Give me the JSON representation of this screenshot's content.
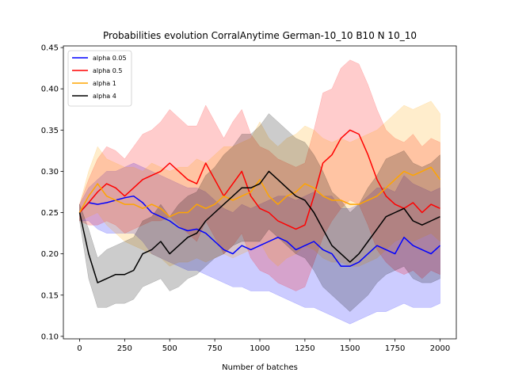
{
  "chart_data": {
    "type": "line",
    "title": "Probabilities evolution CorralAnytime German-10_10 B10 N 10_10",
    "xlabel": "Number of batches",
    "ylabel": "",
    "xlim": [
      -90,
      2090
    ],
    "ylim": [
      0.097,
      0.452
    ],
    "x_ticks": [
      0,
      250,
      500,
      750,
      1000,
      1250,
      1500,
      1750,
      2000
    ],
    "y_ticks": [
      0.1,
      0.15,
      0.2,
      0.25,
      0.3,
      0.35,
      0.4,
      0.45
    ],
    "grid": false,
    "legend_position": "top-left",
    "x": [
      0,
      50,
      100,
      150,
      200,
      250,
      300,
      350,
      400,
      450,
      500,
      550,
      600,
      650,
      700,
      750,
      800,
      850,
      900,
      950,
      1000,
      1050,
      1100,
      1150,
      1200,
      1250,
      1300,
      1350,
      1400,
      1450,
      1500,
      1550,
      1600,
      1650,
      1700,
      1750,
      1800,
      1850,
      1900,
      1950,
      2000
    ],
    "series": [
      {
        "name": "alpha 0.05",
        "color": "#0000ff",
        "values": [
          0.25,
          0.262,
          0.26,
          0.262,
          0.265,
          0.268,
          0.27,
          0.262,
          0.25,
          0.245,
          0.24,
          0.232,
          0.228,
          0.23,
          0.225,
          0.215,
          0.205,
          0.2,
          0.21,
          0.205,
          0.21,
          0.215,
          0.22,
          0.215,
          0.205,
          0.21,
          0.215,
          0.205,
          0.2,
          0.185,
          0.185,
          0.19,
          0.2,
          0.21,
          0.205,
          0.2,
          0.22,
          0.21,
          0.205,
          0.2,
          0.21
        ],
        "lower": [
          0.24,
          0.24,
          0.23,
          0.225,
          0.225,
          0.225,
          0.225,
          0.215,
          0.2,
          0.195,
          0.19,
          0.185,
          0.18,
          0.18,
          0.175,
          0.17,
          0.165,
          0.16,
          0.16,
          0.155,
          0.155,
          0.155,
          0.15,
          0.145,
          0.14,
          0.135,
          0.135,
          0.13,
          0.125,
          0.12,
          0.115,
          0.12,
          0.125,
          0.13,
          0.13,
          0.135,
          0.14,
          0.135,
          0.135,
          0.135,
          0.14
        ],
        "upper": [
          0.26,
          0.28,
          0.29,
          0.3,
          0.3,
          0.305,
          0.31,
          0.305,
          0.3,
          0.295,
          0.29,
          0.285,
          0.28,
          0.28,
          0.275,
          0.265,
          0.255,
          0.25,
          0.26,
          0.255,
          0.26,
          0.265,
          0.27,
          0.27,
          0.265,
          0.27,
          0.275,
          0.27,
          0.27,
          0.255,
          0.255,
          0.26,
          0.27,
          0.28,
          0.28,
          0.275,
          0.295,
          0.285,
          0.28,
          0.275,
          0.28
        ]
      },
      {
        "name": "alpha 0.5",
        "color": "#ff0000",
        "values": [
          0.25,
          0.262,
          0.275,
          0.285,
          0.28,
          0.27,
          0.28,
          0.29,
          0.295,
          0.3,
          0.31,
          0.3,
          0.29,
          0.285,
          0.31,
          0.29,
          0.27,
          0.285,
          0.3,
          0.27,
          0.255,
          0.25,
          0.24,
          0.235,
          0.23,
          0.235,
          0.27,
          0.31,
          0.32,
          0.34,
          0.35,
          0.345,
          0.32,
          0.29,
          0.27,
          0.26,
          0.255,
          0.262,
          0.25,
          0.26,
          0.255
        ],
        "lower": [
          0.24,
          0.235,
          0.235,
          0.24,
          0.235,
          0.225,
          0.23,
          0.235,
          0.24,
          0.24,
          0.245,
          0.235,
          0.225,
          0.215,
          0.24,
          0.22,
          0.2,
          0.21,
          0.225,
          0.195,
          0.18,
          0.175,
          0.165,
          0.16,
          0.155,
          0.16,
          0.19,
          0.22,
          0.24,
          0.255,
          0.265,
          0.26,
          0.235,
          0.205,
          0.19,
          0.18,
          0.175,
          0.18,
          0.17,
          0.18,
          0.175
        ],
        "upper": [
          0.26,
          0.29,
          0.315,
          0.33,
          0.325,
          0.315,
          0.33,
          0.345,
          0.35,
          0.36,
          0.375,
          0.365,
          0.355,
          0.355,
          0.38,
          0.36,
          0.34,
          0.36,
          0.375,
          0.345,
          0.33,
          0.325,
          0.315,
          0.31,
          0.305,
          0.31,
          0.35,
          0.395,
          0.4,
          0.425,
          0.435,
          0.43,
          0.405,
          0.375,
          0.35,
          0.34,
          0.335,
          0.345,
          0.33,
          0.34,
          0.335
        ]
      },
      {
        "name": "alpha 1",
        "color": "#ffa500",
        "values": [
          0.25,
          0.27,
          0.285,
          0.27,
          0.265,
          0.26,
          0.26,
          0.255,
          0.26,
          0.255,
          0.245,
          0.25,
          0.25,
          0.26,
          0.255,
          0.26,
          0.27,
          0.265,
          0.27,
          0.275,
          0.29,
          0.27,
          0.26,
          0.27,
          0.275,
          0.285,
          0.28,
          0.27,
          0.265,
          0.265,
          0.26,
          0.26,
          0.265,
          0.27,
          0.28,
          0.29,
          0.3,
          0.295,
          0.3,
          0.305,
          0.29
        ],
        "lower": [
          0.24,
          0.245,
          0.25,
          0.235,
          0.225,
          0.215,
          0.21,
          0.205,
          0.2,
          0.195,
          0.185,
          0.19,
          0.19,
          0.195,
          0.19,
          0.195,
          0.2,
          0.195,
          0.2,
          0.205,
          0.215,
          0.195,
          0.185,
          0.195,
          0.2,
          0.21,
          0.205,
          0.195,
          0.19,
          0.19,
          0.185,
          0.185,
          0.19,
          0.195,
          0.205,
          0.215,
          0.22,
          0.215,
          0.22,
          0.225,
          0.215
        ],
        "upper": [
          0.26,
          0.3,
          0.33,
          0.315,
          0.31,
          0.305,
          0.305,
          0.3,
          0.31,
          0.305,
          0.3,
          0.305,
          0.305,
          0.315,
          0.31,
          0.32,
          0.33,
          0.33,
          0.335,
          0.34,
          0.36,
          0.34,
          0.33,
          0.34,
          0.345,
          0.355,
          0.35,
          0.34,
          0.335,
          0.34,
          0.335,
          0.34,
          0.345,
          0.35,
          0.36,
          0.37,
          0.38,
          0.375,
          0.38,
          0.385,
          0.37
        ]
      },
      {
        "name": "alpha 4",
        "color": "#000000",
        "values": [
          0.25,
          0.2,
          0.165,
          0.17,
          0.175,
          0.175,
          0.18,
          0.2,
          0.205,
          0.215,
          0.2,
          0.21,
          0.22,
          0.225,
          0.24,
          0.25,
          0.26,
          0.27,
          0.28,
          0.28,
          0.285,
          0.3,
          0.29,
          0.28,
          0.27,
          0.265,
          0.25,
          0.23,
          0.21,
          0.2,
          0.19,
          0.2,
          0.215,
          0.23,
          0.245,
          0.25,
          0.255,
          0.24,
          0.235,
          0.24,
          0.245
        ],
        "lower": [
          0.24,
          0.17,
          0.135,
          0.135,
          0.14,
          0.14,
          0.145,
          0.16,
          0.165,
          0.17,
          0.155,
          0.16,
          0.17,
          0.175,
          0.185,
          0.195,
          0.2,
          0.21,
          0.215,
          0.215,
          0.215,
          0.23,
          0.22,
          0.21,
          0.2,
          0.195,
          0.18,
          0.16,
          0.15,
          0.14,
          0.13,
          0.14,
          0.15,
          0.165,
          0.175,
          0.18,
          0.185,
          0.17,
          0.165,
          0.165,
          0.17
        ],
        "upper": [
          0.26,
          0.23,
          0.195,
          0.205,
          0.21,
          0.215,
          0.22,
          0.24,
          0.245,
          0.26,
          0.245,
          0.26,
          0.27,
          0.275,
          0.295,
          0.305,
          0.32,
          0.33,
          0.345,
          0.345,
          0.355,
          0.37,
          0.36,
          0.35,
          0.34,
          0.335,
          0.32,
          0.3,
          0.275,
          0.265,
          0.25,
          0.26,
          0.28,
          0.295,
          0.315,
          0.32,
          0.325,
          0.31,
          0.305,
          0.31,
          0.32
        ]
      }
    ]
  }
}
